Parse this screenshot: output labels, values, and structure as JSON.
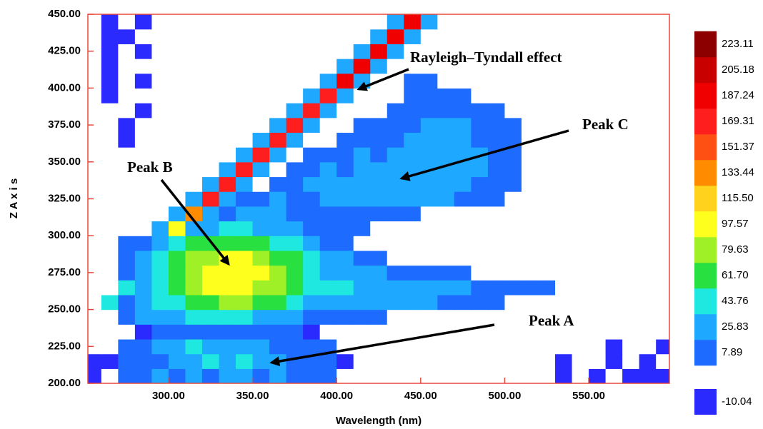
{
  "chart_data": {
    "type": "contour",
    "xlabel": "Wavelength (nm)",
    "ylabel": "Z A x i s",
    "xlim": [
      252,
      598
    ],
    "ylim": [
      200,
      450
    ],
    "xticks": [
      {
        "value": 300,
        "label": "300.00"
      },
      {
        "value": 350,
        "label": "350.00"
      },
      {
        "value": 400,
        "label": "400.00"
      },
      {
        "value": 450,
        "label": "450.00"
      },
      {
        "value": 500,
        "label": "500.00"
      },
      {
        "value": 550,
        "label": "550.00"
      }
    ],
    "yticks": [
      {
        "value": 200,
        "label": "200.00"
      },
      {
        "value": 225,
        "label": "225.00"
      },
      {
        "value": 250,
        "label": "250.00"
      },
      {
        "value": 275,
        "label": "275.00"
      },
      {
        "value": 300,
        "label": "300.00"
      },
      {
        "value": 325,
        "label": "325.00"
      },
      {
        "value": 350,
        "label": "350.00"
      },
      {
        "value": 375,
        "label": "375.00"
      },
      {
        "value": 400,
        "label": "400.00"
      },
      {
        "value": 425,
        "label": "425.00"
      },
      {
        "value": 450,
        "label": "450.00"
      }
    ],
    "x": [
      255,
      265,
      275,
      285,
      295,
      305,
      315,
      325,
      335,
      345,
      355,
      365,
      375,
      385,
      395,
      405,
      415,
      425,
      435,
      445,
      455,
      465,
      475,
      485,
      495,
      505,
      515,
      525,
      535,
      545,
      555,
      565,
      575,
      585,
      595
    ],
    "y": [
      205,
      215,
      225,
      235,
      245,
      255,
      265,
      275,
      285,
      295,
      305,
      315,
      325,
      335,
      345,
      355,
      365,
      375,
      385,
      395,
      405,
      415,
      425,
      435,
      445
    ],
    "z": [
      [
        -5,
        -20,
        15,
        15,
        35,
        15,
        35,
        15,
        35,
        35,
        15,
        35,
        15,
        15,
        15,
        -20,
        -20,
        -20,
        -20,
        -20,
        -20,
        -20,
        -20,
        -20,
        -20,
        -20,
        -20,
        -20,
        -5,
        -20,
        -5,
        -20,
        -5,
        -5,
        -5
      ],
      [
        -5,
        -5,
        15,
        15,
        15,
        35,
        35,
        52,
        35,
        52,
        35,
        35,
        15,
        15,
        15,
        -5,
        -20,
        -20,
        -20,
        -20,
        -20,
        -20,
        -20,
        -20,
        -20,
        -20,
        -20,
        -20,
        -5,
        -20,
        -20,
        -5,
        -20,
        -5,
        -20
      ],
      [
        -20,
        -20,
        15,
        15,
        35,
        35,
        52,
        35,
        35,
        35,
        35,
        15,
        15,
        15,
        15,
        -20,
        -20,
        -20,
        -20,
        -20,
        -20,
        -20,
        -20,
        -20,
        -20,
        -20,
        -20,
        -20,
        -20,
        -20,
        -20,
        -5,
        -20,
        -20,
        -5
      ],
      [
        -20,
        -20,
        -20,
        -5,
        15,
        15,
        15,
        15,
        15,
        15,
        15,
        15,
        15,
        -5,
        -20,
        -20,
        -20,
        -20,
        -20,
        -20,
        -20,
        -20,
        -20,
        -20,
        -20,
        -20,
        -20,
        -20,
        -20,
        -20,
        -20,
        -20,
        -20,
        -20,
        -20
      ],
      [
        -20,
        -20,
        15,
        35,
        35,
        35,
        52,
        52,
        52,
        52,
        35,
        35,
        35,
        15,
        15,
        15,
        15,
        15,
        -20,
        -20,
        -20,
        -20,
        -20,
        -20,
        -20,
        -20,
        -20,
        -20,
        -20,
        -20,
        -20,
        -20,
        -20,
        -20,
        -20
      ],
      [
        -20,
        45,
        15,
        35,
        52,
        52,
        68,
        68,
        88,
        88,
        68,
        68,
        52,
        35,
        35,
        35,
        35,
        35,
        35,
        35,
        35,
        15,
        15,
        15,
        15,
        -20,
        -20,
        -20,
        -20,
        -20,
        -20,
        -20,
        -20,
        -20,
        -20
      ],
      [
        -20,
        -20,
        45,
        35,
        52,
        68,
        88,
        104,
        104,
        104,
        88,
        88,
        68,
        52,
        52,
        52,
        35,
        35,
        35,
        35,
        35,
        35,
        35,
        15,
        15,
        15,
        15,
        15,
        -20,
        -20,
        -20,
        -20,
        -20,
        -20,
        -20
      ],
      [
        -20,
        -20,
        15,
        35,
        52,
        68,
        88,
        104,
        110,
        106,
        104,
        88,
        68,
        52,
        35,
        35,
        35,
        35,
        15,
        15,
        15,
        15,
        15,
        -20,
        -20,
        -20,
        -20,
        -20,
        -20,
        -20,
        -20,
        -20,
        -20,
        -20,
        -20
      ],
      [
        -20,
        -20,
        15,
        35,
        52,
        68,
        88,
        88,
        104,
        104,
        88,
        68,
        68,
        52,
        35,
        35,
        15,
        15,
        -20,
        -20,
        -20,
        -20,
        -20,
        -20,
        -20,
        -20,
        -20,
        -20,
        -20,
        -20,
        -20,
        -20,
        -20,
        -20,
        -20
      ],
      [
        -20,
        -20,
        15,
        15,
        35,
        52,
        68,
        68,
        68,
        68,
        68,
        52,
        52,
        35,
        15,
        15,
        -20,
        -20,
        -20,
        -20,
        -20,
        -20,
        -20,
        -20,
        -20,
        -20,
        -20,
        -20,
        -20,
        -20,
        -20,
        -20,
        -20,
        -20,
        -20
      ],
      [
        -20,
        -20,
        -20,
        -20,
        40,
        110,
        40,
        35,
        52,
        52,
        35,
        35,
        35,
        15,
        15,
        15,
        15,
        -20,
        -20,
        -20,
        -20,
        -20,
        -20,
        -20,
        -20,
        -20,
        -20,
        -20,
        -20,
        -20,
        -20,
        -20,
        -20,
        -20,
        -20
      ],
      [
        -20,
        -20,
        -20,
        -20,
        -20,
        40,
        150,
        40,
        15,
        35,
        35,
        35,
        15,
        15,
        15,
        15,
        15,
        15,
        15,
        15,
        -20,
        -20,
        -20,
        -20,
        -20,
        -20,
        -20,
        -20,
        -20,
        -20,
        -20,
        -20,
        -20,
        -20,
        -20
      ],
      [
        -20,
        -20,
        -20,
        -20,
        -20,
        -20,
        40,
        170,
        40,
        15,
        15,
        35,
        15,
        15,
        35,
        35,
        35,
        35,
        35,
        35,
        35,
        35,
        15,
        15,
        15,
        -20,
        -20,
        -20,
        -20,
        -20,
        -20,
        -20,
        -20,
        -20,
        -20
      ],
      [
        -20,
        -20,
        -20,
        -20,
        -20,
        -20,
        -20,
        40,
        180,
        40,
        -20,
        15,
        15,
        35,
        35,
        35,
        35,
        35,
        35,
        35,
        35,
        35,
        35,
        15,
        15,
        15,
        -20,
        -20,
        -20,
        -20,
        -20,
        -20,
        -20,
        -20,
        -20
      ],
      [
        -20,
        -20,
        -20,
        -20,
        -20,
        -20,
        -20,
        -20,
        40,
        180,
        40,
        -20,
        15,
        15,
        35,
        15,
        35,
        35,
        35,
        35,
        35,
        35,
        35,
        35,
        15,
        15,
        -20,
        -20,
        -20,
        -20,
        -20,
        -20,
        -20,
        -20,
        -20
      ],
      [
        -20,
        -20,
        -20,
        -20,
        -20,
        -20,
        -20,
        -20,
        -20,
        40,
        182,
        40,
        -20,
        15,
        15,
        15,
        35,
        15,
        35,
        35,
        35,
        35,
        35,
        35,
        15,
        15,
        -20,
        -20,
        -20,
        -20,
        -20,
        -20,
        -20,
        -20,
        -20
      ],
      [
        -20,
        -20,
        -5,
        -20,
        -20,
        -20,
        -20,
        -20,
        -20,
        -20,
        40,
        182,
        40,
        -20,
        -20,
        15,
        15,
        15,
        15,
        35,
        35,
        35,
        35,
        15,
        15,
        15,
        -20,
        -20,
        -20,
        -20,
        -20,
        -20,
        -20,
        -20,
        -20
      ],
      [
        -20,
        -20,
        -5,
        -20,
        -20,
        -20,
        -20,
        -20,
        -20,
        -20,
        -20,
        40,
        185,
        40,
        -20,
        -20,
        15,
        15,
        15,
        15,
        35,
        35,
        35,
        15,
        15,
        15,
        -20,
        -20,
        -20,
        -20,
        -20,
        -20,
        -20,
        -20,
        -20
      ],
      [
        -20,
        -20,
        -20,
        -5,
        -20,
        -20,
        -20,
        -20,
        -20,
        -20,
        -20,
        -20,
        40,
        185,
        40,
        -20,
        -20,
        -20,
        15,
        15,
        15,
        15,
        15,
        15,
        15,
        -20,
        -20,
        -20,
        -20,
        -20,
        -20,
        -20,
        -20,
        -20,
        -20
      ],
      [
        -20,
        -5,
        -20,
        -20,
        -20,
        -20,
        -20,
        -20,
        -20,
        -20,
        -20,
        -20,
        -20,
        40,
        185,
        40,
        -20,
        -20,
        -20,
        15,
        15,
        15,
        15,
        -20,
        -20,
        -20,
        -20,
        -20,
        -20,
        -20,
        -20,
        -20,
        -20,
        -20,
        -20
      ],
      [
        -20,
        -5,
        -20,
        -5,
        -20,
        -20,
        -20,
        -20,
        -20,
        -20,
        -20,
        -20,
        -20,
        -20,
        40,
        188,
        40,
        -20,
        -20,
        15,
        15,
        -20,
        -20,
        -20,
        -20,
        -20,
        -20,
        -20,
        -20,
        -20,
        -20,
        -20,
        -20,
        -20,
        -20
      ],
      [
        -20,
        -5,
        -20,
        -20,
        -20,
        -20,
        -20,
        -20,
        -20,
        -20,
        -20,
        -20,
        -20,
        -20,
        -20,
        40,
        188,
        40,
        -20,
        -20,
        -20,
        -20,
        -20,
        -20,
        -20,
        -20,
        -20,
        -20,
        -20,
        -20,
        -20,
        -20,
        -20,
        -20,
        -20
      ],
      [
        -20,
        -5,
        -20,
        -5,
        -20,
        -20,
        -20,
        -20,
        -20,
        -20,
        -20,
        -20,
        -20,
        -20,
        -20,
        -20,
        40,
        188,
        40,
        -20,
        -20,
        -20,
        -20,
        -20,
        -20,
        -20,
        -20,
        -20,
        -20,
        -20,
        -20,
        -20,
        -20,
        -20,
        -20
      ],
      [
        -20,
        -5,
        -5,
        -20,
        -20,
        -20,
        -20,
        -20,
        -20,
        -20,
        -20,
        -20,
        -20,
        -20,
        -20,
        -20,
        -20,
        40,
        190,
        40,
        -20,
        -20,
        -20,
        -20,
        -20,
        -20,
        -20,
        -20,
        -20,
        -20,
        -20,
        -20,
        -20,
        -20,
        -20
      ],
      [
        -20,
        -5,
        -20,
        -5,
        -20,
        -20,
        -20,
        -20,
        -20,
        -20,
        -20,
        -20,
        -20,
        -20,
        -20,
        -20,
        -20,
        -20,
        40,
        190,
        40,
        -20,
        -20,
        -20,
        -20,
        -20,
        -20,
        -20,
        -20,
        -20,
        -20,
        -20,
        -20,
        -20,
        -20
      ]
    ],
    "colorbar": {
      "levels": [
        {
          "value": -10.04,
          "label": "-10.04"
        },
        {
          "value": 7.89,
          "label": "7.89"
        },
        {
          "value": 25.83,
          "label": "25.83"
        },
        {
          "value": 43.76,
          "label": "43.76"
        },
        {
          "value": 61.7,
          "label": "61.70"
        },
        {
          "value": 79.63,
          "label": "79.63"
        },
        {
          "value": 97.57,
          "label": "97.57"
        },
        {
          "value": 115.5,
          "label": "115.50"
        },
        {
          "value": 133.44,
          "label": "133.44"
        },
        {
          "value": 151.37,
          "label": "151.37"
        },
        {
          "value": 169.31,
          "label": "169.31"
        },
        {
          "value": 187.24,
          "label": "187.24"
        },
        {
          "value": 205.18,
          "label": "205.18"
        },
        {
          "value": 223.11,
          "label": "223.11"
        }
      ],
      "colors": [
        "#2a2aff",
        "#1e6cff",
        "#1ea8ff",
        "#1ee8e0",
        "#28e040",
        "#a0f028",
        "#ffff1e",
        "#ffd21e",
        "#ff8c00",
        "#ff5014",
        "#ff1e1e",
        "#f00000",
        "#c80000",
        "#8c0000"
      ]
    },
    "annotations": [
      "Rayleigh–Tyndall effect",
      "Peak C",
      "Peak B",
      "Peak A"
    ]
  }
}
